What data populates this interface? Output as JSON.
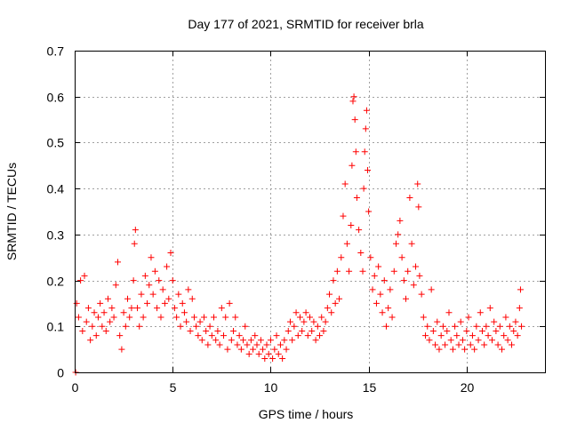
{
  "chart_data": {
    "type": "scatter",
    "title": "Day 177 of 2021, SRMTID for receiver brla",
    "xlabel": "GPS time / hours",
    "ylabel": "SRMTID / TECUs",
    "xlim": [
      0,
      24
    ],
    "ylim": [
      0,
      0.7
    ],
    "xticks": [
      0,
      5,
      10,
      15,
      20
    ],
    "yticks": [
      0,
      0.1,
      0.2,
      0.3,
      0.4,
      0.5,
      0.6,
      0.7
    ],
    "xtick_labels": [
      "0",
      "5",
      "10",
      "15",
      "20"
    ],
    "ytick_labels": [
      "0",
      "0.1",
      "0.2",
      "0.3",
      "0.4",
      "0.5",
      "0.6",
      "0.7"
    ],
    "grid": true,
    "marker": "+",
    "color": "#ff0000",
    "series": [
      {
        "name": "SRMTID",
        "points": [
          [
            0.05,
            0.0
          ],
          [
            0.1,
            0.15
          ],
          [
            0.2,
            0.12
          ],
          [
            0.3,
            0.2
          ],
          [
            0.4,
            0.09
          ],
          [
            0.5,
            0.21
          ],
          [
            0.6,
            0.11
          ],
          [
            0.7,
            0.14
          ],
          [
            0.8,
            0.07
          ],
          [
            0.9,
            0.1
          ],
          [
            1.0,
            0.13
          ],
          [
            1.1,
            0.08
          ],
          [
            1.2,
            0.12
          ],
          [
            1.3,
            0.15
          ],
          [
            1.4,
            0.1
          ],
          [
            1.5,
            0.13
          ],
          [
            1.6,
            0.09
          ],
          [
            1.7,
            0.16
          ],
          [
            1.8,
            0.11
          ],
          [
            1.9,
            0.14
          ],
          [
            2.0,
            0.12
          ],
          [
            2.1,
            0.19
          ],
          [
            2.2,
            0.24
          ],
          [
            2.3,
            0.08
          ],
          [
            2.4,
            0.05
          ],
          [
            2.5,
            0.13
          ],
          [
            2.6,
            0.1
          ],
          [
            2.7,
            0.16
          ],
          [
            2.8,
            0.12
          ],
          [
            2.9,
            0.14
          ],
          [
            3.0,
            0.2
          ],
          [
            3.05,
            0.28
          ],
          [
            3.1,
            0.31
          ],
          [
            3.2,
            0.14
          ],
          [
            3.3,
            0.1
          ],
          [
            3.4,
            0.17
          ],
          [
            3.5,
            0.12
          ],
          [
            3.6,
            0.21
          ],
          [
            3.7,
            0.15
          ],
          [
            3.8,
            0.19
          ],
          [
            3.9,
            0.25
          ],
          [
            4.0,
            0.17
          ],
          [
            4.1,
            0.22
          ],
          [
            4.2,
            0.14
          ],
          [
            4.3,
            0.2
          ],
          [
            4.4,
            0.12
          ],
          [
            4.5,
            0.18
          ],
          [
            4.6,
            0.15
          ],
          [
            4.7,
            0.23
          ],
          [
            4.8,
            0.16
          ],
          [
            4.9,
            0.26
          ],
          [
            5.0,
            0.2
          ],
          [
            5.1,
            0.14
          ],
          [
            5.2,
            0.12
          ],
          [
            5.3,
            0.17
          ],
          [
            5.4,
            0.1
          ],
          [
            5.5,
            0.15
          ],
          [
            5.6,
            0.13
          ],
          [
            5.7,
            0.11
          ],
          [
            5.8,
            0.18
          ],
          [
            5.9,
            0.09
          ],
          [
            6.0,
            0.16
          ],
          [
            6.1,
            0.12
          ],
          [
            6.2,
            0.1
          ],
          [
            6.3,
            0.08
          ],
          [
            6.4,
            0.11
          ],
          [
            6.5,
            0.07
          ],
          [
            6.6,
            0.12
          ],
          [
            6.7,
            0.09
          ],
          [
            6.8,
            0.06
          ],
          [
            6.9,
            0.1
          ],
          [
            7.0,
            0.08
          ],
          [
            7.1,
            0.12
          ],
          [
            7.2,
            0.07
          ],
          [
            7.3,
            0.09
          ],
          [
            7.4,
            0.06
          ],
          [
            7.5,
            0.14
          ],
          [
            7.6,
            0.08
          ],
          [
            7.7,
            0.12
          ],
          [
            7.8,
            0.05
          ],
          [
            7.9,
            0.15
          ],
          [
            8.0,
            0.07
          ],
          [
            8.1,
            0.09
          ],
          [
            8.2,
            0.12
          ],
          [
            8.3,
            0.06
          ],
          [
            8.4,
            0.08
          ],
          [
            8.5,
            0.05
          ],
          [
            8.6,
            0.07
          ],
          [
            8.7,
            0.1
          ],
          [
            8.8,
            0.06
          ],
          [
            8.9,
            0.04
          ],
          [
            9.0,
            0.07
          ],
          [
            9.1,
            0.05
          ],
          [
            9.2,
            0.08
          ],
          [
            9.3,
            0.06
          ],
          [
            9.4,
            0.04
          ],
          [
            9.5,
            0.07
          ],
          [
            9.6,
            0.05
          ],
          [
            9.7,
            0.03
          ],
          [
            9.8,
            0.06
          ],
          [
            9.9,
            0.04
          ],
          [
            10.0,
            0.07
          ],
          [
            10.1,
            0.03
          ],
          [
            10.2,
            0.05
          ],
          [
            10.3,
            0.08
          ],
          [
            10.4,
            0.04
          ],
          [
            10.5,
            0.06
          ],
          [
            10.6,
            0.03
          ],
          [
            10.7,
            0.07
          ],
          [
            10.8,
            0.05
          ],
          [
            10.9,
            0.09
          ],
          [
            11.0,
            0.11
          ],
          [
            11.1,
            0.07
          ],
          [
            11.2,
            0.1
          ],
          [
            11.3,
            0.13
          ],
          [
            11.4,
            0.08
          ],
          [
            11.5,
            0.12
          ],
          [
            11.6,
            0.09
          ],
          [
            11.7,
            0.11
          ],
          [
            11.8,
            0.13
          ],
          [
            11.9,
            0.08
          ],
          [
            12.0,
            0.12
          ],
          [
            12.1,
            0.09
          ],
          [
            12.2,
            0.11
          ],
          [
            12.3,
            0.07
          ],
          [
            12.4,
            0.1
          ],
          [
            12.5,
            0.08
          ],
          [
            12.6,
            0.12
          ],
          [
            12.7,
            0.09
          ],
          [
            12.8,
            0.11
          ],
          [
            12.9,
            0.14
          ],
          [
            13.0,
            0.17
          ],
          [
            13.1,
            0.13
          ],
          [
            13.2,
            0.2
          ],
          [
            13.3,
            0.15
          ],
          [
            13.4,
            0.22
          ],
          [
            13.5,
            0.16
          ],
          [
            13.6,
            0.25
          ],
          [
            13.7,
            0.34
          ],
          [
            13.8,
            0.41
          ],
          [
            13.9,
            0.28
          ],
          [
            14.0,
            0.22
          ],
          [
            14.1,
            0.32
          ],
          [
            14.15,
            0.45
          ],
          [
            14.2,
            0.59
          ],
          [
            14.25,
            0.6
          ],
          [
            14.3,
            0.55
          ],
          [
            14.35,
            0.48
          ],
          [
            14.4,
            0.38
          ],
          [
            14.5,
            0.31
          ],
          [
            14.6,
            0.26
          ],
          [
            14.7,
            0.22
          ],
          [
            14.75,
            0.4
          ],
          [
            14.8,
            0.48
          ],
          [
            14.85,
            0.53
          ],
          [
            14.9,
            0.57
          ],
          [
            14.95,
            0.44
          ],
          [
            15.0,
            0.35
          ],
          [
            15.1,
            0.25
          ],
          [
            15.2,
            0.18
          ],
          [
            15.3,
            0.21
          ],
          [
            15.4,
            0.15
          ],
          [
            15.5,
            0.23
          ],
          [
            15.6,
            0.17
          ],
          [
            15.7,
            0.13
          ],
          [
            15.8,
            0.2
          ],
          [
            15.9,
            0.1
          ],
          [
            16.0,
            0.14
          ],
          [
            16.1,
            0.18
          ],
          [
            16.2,
            0.12
          ],
          [
            16.3,
            0.22
          ],
          [
            16.4,
            0.28
          ],
          [
            16.5,
            0.3
          ],
          [
            16.6,
            0.33
          ],
          [
            16.7,
            0.25
          ],
          [
            16.8,
            0.2
          ],
          [
            16.9,
            0.16
          ],
          [
            17.0,
            0.22
          ],
          [
            17.1,
            0.38
          ],
          [
            17.2,
            0.28
          ],
          [
            17.3,
            0.19
          ],
          [
            17.4,
            0.23
          ],
          [
            17.5,
            0.41
          ],
          [
            17.55,
            0.36
          ],
          [
            17.6,
            0.21
          ],
          [
            17.7,
            0.17
          ],
          [
            17.8,
            0.12
          ],
          [
            17.9,
            0.08
          ],
          [
            18.0,
            0.1
          ],
          [
            18.1,
            0.07
          ],
          [
            18.2,
            0.18
          ],
          [
            18.3,
            0.09
          ],
          [
            18.4,
            0.06
          ],
          [
            18.5,
            0.11
          ],
          [
            18.6,
            0.05
          ],
          [
            18.7,
            0.08
          ],
          [
            18.8,
            0.1
          ],
          [
            18.9,
            0.06
          ],
          [
            19.0,
            0.09
          ],
          [
            19.1,
            0.13
          ],
          [
            19.2,
            0.07
          ],
          [
            19.3,
            0.05
          ],
          [
            19.4,
            0.1
          ],
          [
            19.5,
            0.08
          ],
          [
            19.6,
            0.06
          ],
          [
            19.7,
            0.11
          ],
          [
            19.8,
            0.07
          ],
          [
            19.9,
            0.05
          ],
          [
            20.0,
            0.09
          ],
          [
            20.1,
            0.12
          ],
          [
            20.2,
            0.06
          ],
          [
            20.3,
            0.08
          ],
          [
            20.4,
            0.05
          ],
          [
            20.5,
            0.1
          ],
          [
            20.6,
            0.07
          ],
          [
            20.7,
            0.13
          ],
          [
            20.8,
            0.09
          ],
          [
            20.9,
            0.06
          ],
          [
            21.0,
            0.1
          ],
          [
            21.1,
            0.08
          ],
          [
            21.2,
            0.14
          ],
          [
            21.3,
            0.07
          ],
          [
            21.4,
            0.11
          ],
          [
            21.5,
            0.09
          ],
          [
            21.6,
            0.06
          ],
          [
            21.7,
            0.1
          ],
          [
            21.8,
            0.05
          ],
          [
            21.9,
            0.08
          ],
          [
            22.0,
            0.12
          ],
          [
            22.1,
            0.07
          ],
          [
            22.2,
            0.1
          ],
          [
            22.3,
            0.06
          ],
          [
            22.4,
            0.09
          ],
          [
            22.5,
            0.11
          ],
          [
            22.6,
            0.08
          ],
          [
            22.7,
            0.14
          ],
          [
            22.75,
            0.18
          ],
          [
            22.8,
            0.1
          ]
        ]
      }
    ]
  }
}
